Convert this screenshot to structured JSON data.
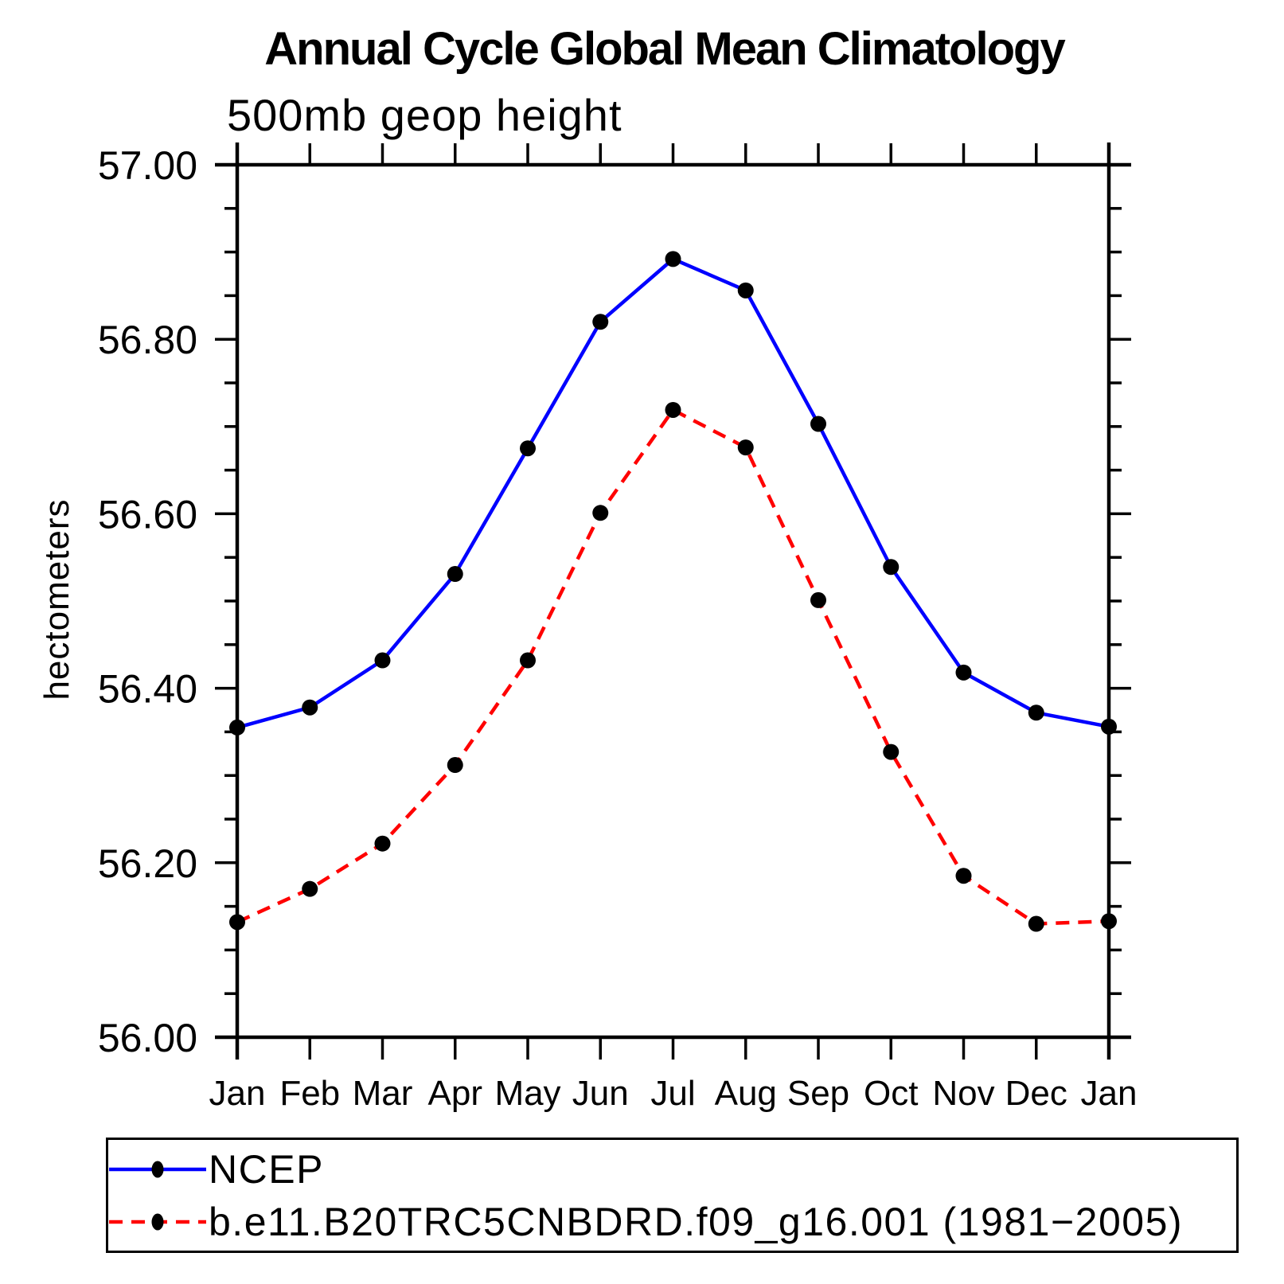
{
  "title": "Annual Cycle Global Mean Climatology",
  "subtitle": "500mb geop height",
  "colors": {
    "ncep_line": "#0000ff",
    "model_line": "#ff0000",
    "axis": "#000000",
    "marker": "#000000",
    "background": "#ffffff"
  },
  "chart_data": {
    "type": "line",
    "title": "Annual Cycle Global Mean Climatology",
    "subtitle": "500mb geop height",
    "xlabel": "",
    "ylabel": "hectometers",
    "categories": [
      "Jan",
      "Feb",
      "Mar",
      "Apr",
      "May",
      "Jun",
      "Jul",
      "Aug",
      "Sep",
      "Oct",
      "Nov",
      "Dec",
      "Jan"
    ],
    "ylim": [
      56.0,
      57.0
    ],
    "ytick_step": 0.2,
    "ytick_labels": [
      "57.00",
      "56.80",
      "56.60",
      "56.40",
      "56.20",
      "56.00"
    ],
    "minor_tick_step": 0.05,
    "grid": false,
    "legend_position": "bottom",
    "series": [
      {
        "name": "NCEP",
        "color": "#0000ff",
        "style": "solid",
        "marker": "filled-circle",
        "values": [
          56.355,
          56.378,
          56.432,
          56.531,
          56.675,
          56.82,
          56.892,
          56.856,
          56.703,
          56.539,
          56.418,
          56.372,
          56.356
        ]
      },
      {
        "name": "b.e11.B20TRC5CNBDRD.f09_g16.001 (1981−2005)",
        "color": "#ff0000",
        "style": "dashed",
        "marker": "filled-circle",
        "values": [
          56.132,
          56.17,
          56.222,
          56.312,
          56.432,
          56.601,
          56.719,
          56.676,
          56.501,
          56.327,
          56.185,
          56.13,
          56.133
        ]
      }
    ]
  }
}
